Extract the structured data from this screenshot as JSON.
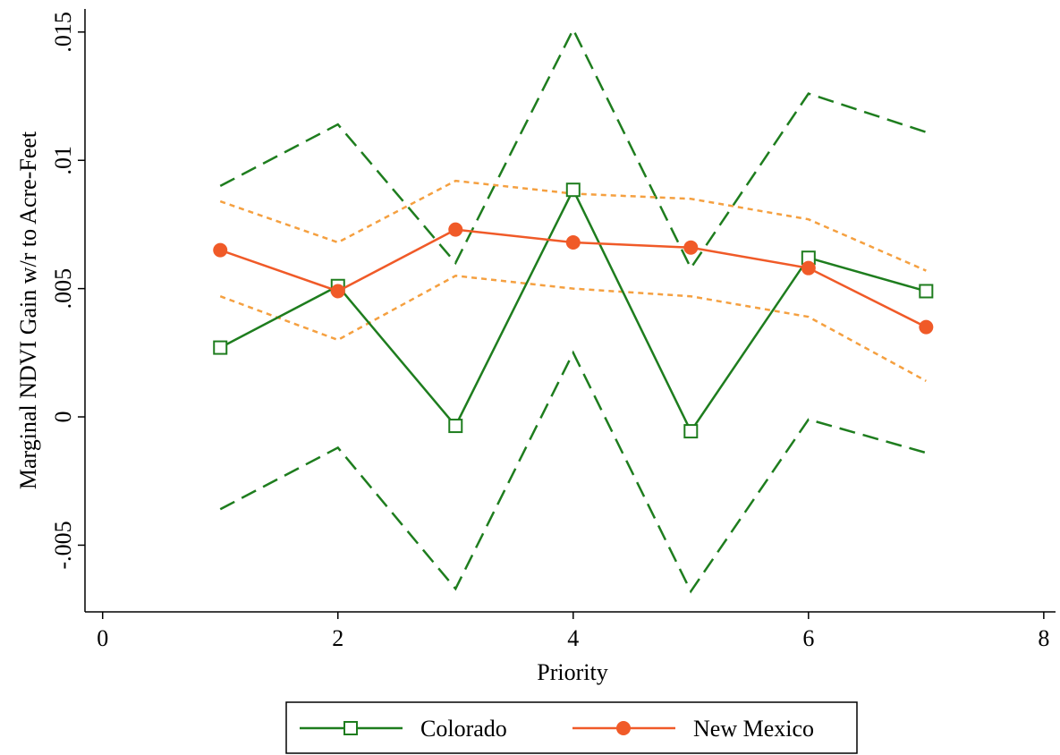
{
  "chart_data": {
    "type": "line",
    "xlabel": "Priority",
    "ylabel": "Marginal NDVI Gain w/r to Acre-Feet",
    "x": [
      1,
      2,
      3,
      4,
      5,
      6,
      7
    ],
    "xlim": [
      -0.15,
      8.1
    ],
    "xticks": [
      0,
      2,
      4,
      6,
      8
    ],
    "ylim": [
      -0.0076,
      0.0159
    ],
    "yticks": [
      {
        "value": -0.005,
        "label": "-.005"
      },
      0,
      {
        "value": 0.005,
        "label": ".005"
      },
      {
        "value": 0.01,
        "label": ".01"
      },
      {
        "value": 0.015,
        "label": ".015"
      }
    ],
    "legend": "bottom",
    "series": [
      {
        "name": "Colorado",
        "color": "#1e7d1e",
        "marker": "square",
        "ci_color": "#1e7d1e",
        "ci_dash": "dashed",
        "values": [
          0.0027,
          0.0051,
          -0.00035,
          0.00885,
          -0.00056,
          0.0062,
          0.0049
        ],
        "ci_upper": [
          0.009,
          0.0114,
          0.006,
          0.0151,
          0.0058,
          0.0126,
          0.0111
        ],
        "ci_lower": [
          -0.0036,
          -0.0012,
          -0.0067,
          0.0025,
          -0.0068,
          -0.0001,
          -0.0014
        ]
      },
      {
        "name": "New Mexico",
        "color": "#f05a28",
        "marker": "circle",
        "ci_color": "#f5a040",
        "ci_dash": "dotted",
        "values": [
          0.0065,
          0.0049,
          0.0073,
          0.0068,
          0.0066,
          0.0058,
          0.0035
        ],
        "ci_upper": [
          0.0084,
          0.0068,
          0.0092,
          0.0087,
          0.0085,
          0.0077,
          0.0057
        ],
        "ci_lower": [
          0.0047,
          0.003,
          0.0055,
          0.005,
          0.0047,
          0.0039,
          0.0014
        ]
      }
    ]
  }
}
